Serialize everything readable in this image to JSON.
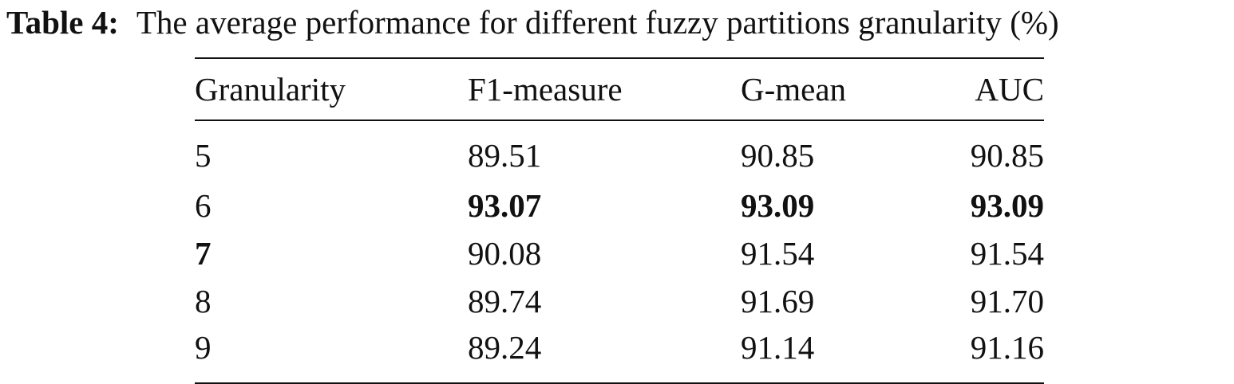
{
  "caption": {
    "label": "Table 4:",
    "text": "The average performance for different fuzzy partitions granularity (%)"
  },
  "table": {
    "headers": [
      "Granularity",
      "F1-measure",
      "G-mean",
      "AUC"
    ],
    "rows": [
      {
        "cells": [
          "5",
          "89.51",
          "90.85",
          "90.85"
        ],
        "bold": [
          false,
          false,
          false,
          false
        ]
      },
      {
        "cells": [
          "6",
          "93.07",
          "93.09",
          "93.09"
        ],
        "bold": [
          false,
          true,
          true,
          true
        ]
      },
      {
        "cells": [
          "7",
          "90.08",
          "91.54",
          "91.54"
        ],
        "bold": [
          true,
          false,
          false,
          false
        ]
      },
      {
        "cells": [
          "8",
          "89.74",
          "91.69",
          "91.70"
        ],
        "bold": [
          false,
          false,
          false,
          false
        ]
      },
      {
        "cells": [
          "9",
          "89.24",
          "91.14",
          "91.16"
        ],
        "bold": [
          false,
          false,
          false,
          false
        ]
      }
    ]
  }
}
